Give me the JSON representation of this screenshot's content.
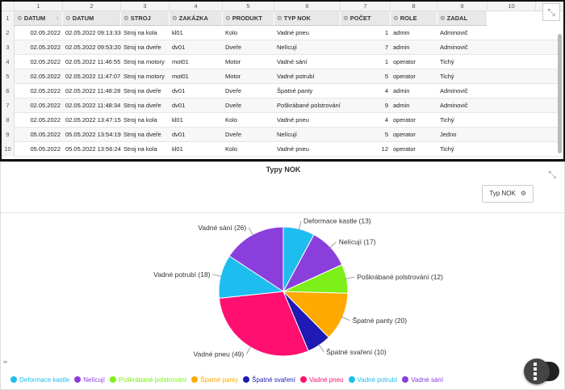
{
  "sheet": {
    "col_numbers": [
      "1",
      "2",
      "3",
      "4",
      "5",
      "6",
      "7",
      "8",
      "9",
      "10"
    ],
    "headers": [
      "DATUM",
      "DATUM",
      "STROJ",
      "ZAKÁZKA",
      "PRODUKT",
      "TYP NOK",
      "POČET",
      "ROLE",
      "ZADAL"
    ],
    "sort_icon": "up-arrow-icon",
    "row_numbers": [
      "1",
      "2",
      "3",
      "4",
      "5",
      "6",
      "7",
      "8",
      "9",
      "10"
    ],
    "rows": [
      [
        "02.05.2022",
        "02.05.2022 09:13:33",
        "Stroj na kola",
        "kl01",
        "Kolo",
        "Vadné pneu",
        "1",
        "admin",
        "Adminovič"
      ],
      [
        "02.05.2022",
        "02.05.2022 09:53:20",
        "Stroj na dveře",
        "dv01",
        "Dveře",
        "Nelícují",
        "7",
        "admin",
        "Adminovič"
      ],
      [
        "02.05.2022",
        "02.05.2022 11:46:55",
        "Stroj na motory",
        "mot01",
        "Motor",
        "Vadné sání",
        "1",
        "operator",
        "Tichý"
      ],
      [
        "02.05.2022",
        "02.05.2022 11:47:07",
        "Stroj na motory",
        "mot01",
        "Motor",
        "Vadné potrubí",
        "5",
        "operator",
        "Tichý"
      ],
      [
        "02.05.2022",
        "02.05.2022 11:48:28",
        "Stroj na dveře",
        "dv01",
        "Dveře",
        "Špatné panty",
        "4",
        "admin",
        "Adminovič"
      ],
      [
        "02.05.2022",
        "02.05.2022 11:48:34",
        "Stroj na dveře",
        "dv01",
        "Dveře",
        "Poškrábané polstrování",
        "9",
        "admin",
        "Adminovič"
      ],
      [
        "02.05.2022",
        "02.05.2022 13:47:15",
        "Stroj na kola",
        "kl01",
        "Kolo",
        "Vadné pneu",
        "4",
        "operator",
        "Tichý"
      ],
      [
        "05.05.2022",
        "05.05.2022 13:54:19",
        "Stroj na dveře",
        "dv01",
        "Dveře",
        "Nelícují",
        "5",
        "operator",
        "Jedno"
      ],
      [
        "05.05.2022",
        "05.05.2022 13:56:24",
        "Stroj na kola",
        "kl01",
        "Kolo",
        "Vadné pneu",
        "12",
        "operator",
        "Tichý"
      ]
    ]
  },
  "chart": {
    "title": "Typy NOK",
    "type_button": "Typ NOK",
    "resize_icon": "collapse-icon",
    "settings_icon": "gear-icon",
    "fab_icon": "dashboard-icon"
  },
  "chart_data": {
    "type": "pie",
    "title": "Typy NOK",
    "labels": [
      "Deformace kastle",
      "Nelícují",
      "Poškrábané polstrování",
      "Špatné panty",
      "Špatné svaření",
      "Vadné pneu",
      "Vadné potrubí",
      "Vadné sání"
    ],
    "values": [
      13,
      17,
      12,
      20,
      10,
      49,
      18,
      26
    ],
    "display_labels": [
      "Deformace kastle (13)",
      "Nelícují (17)",
      "Poškrábané polstrování (12)",
      "Špatné panty (20)",
      "Špatné svaření (10)",
      "Vadné pneu (49)",
      "Vadné potrubí (18)",
      "Vadné sání (26)"
    ],
    "colors": [
      "#1ebdf0",
      "#8a3fdc",
      "#7cf018",
      "#ffaa00",
      "#1f1ab3",
      "#ff0f6f",
      "#1ebdf0",
      "#8a3fdc"
    ],
    "legend_position": "bottom"
  }
}
